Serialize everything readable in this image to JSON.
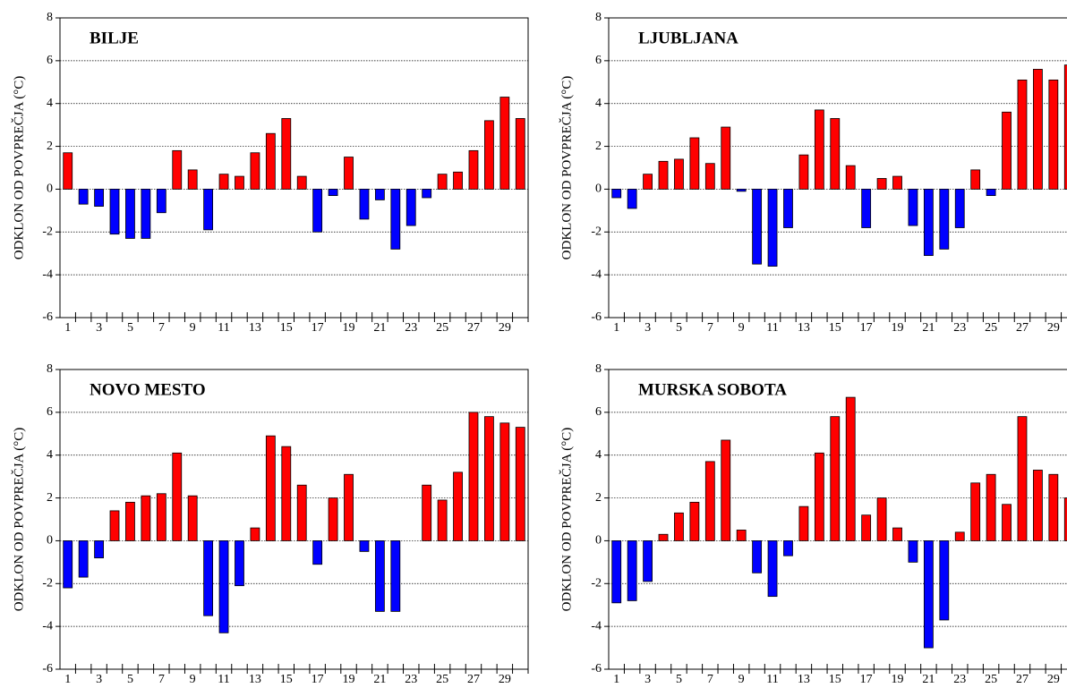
{
  "chart_data": [
    {
      "type": "bar",
      "title": "BILJE",
      "y_label": "ODKLON OD POVPREČJA (°C)",
      "categories": [
        "1",
        null,
        "3",
        null,
        "5",
        null,
        "7",
        null,
        "9",
        null,
        "11",
        null,
        "13",
        null,
        "15",
        null,
        "17",
        null,
        "19",
        null,
        "21",
        null,
        "23",
        null,
        "25",
        null,
        "27",
        null,
        "29",
        null
      ],
      "values": [
        1.7,
        -0.7,
        -0.8,
        -2.1,
        -2.3,
        -2.3,
        -1.1,
        1.8,
        0.9,
        -1.9,
        0.7,
        0.6,
        1.7,
        2.6,
        3.3,
        0.6,
        -2.0,
        -0.3,
        1.5,
        -1.4,
        -0.5,
        -2.8,
        -1.7,
        -0.4,
        0.7,
        0.8,
        1.8,
        3.2,
        4.3,
        3.3
      ],
      "color_positive": "#ff0000",
      "color_negative": "#0000ff",
      "ylim": [
        -6,
        8
      ],
      "yticks": [
        -6,
        -4,
        -2,
        0,
        2,
        4,
        6,
        8
      ],
      "grid": true
    },
    {
      "type": "bar",
      "title": "LJUBLJANA",
      "y_label": "ODKLON OD POVPREČJA (°C)",
      "categories": [
        "1",
        null,
        "3",
        null,
        "5",
        null,
        "7",
        null,
        "9",
        null,
        "11",
        null,
        "13",
        null,
        "15",
        null,
        "17",
        null,
        "19",
        null,
        "21",
        null,
        "23",
        null,
        "25",
        null,
        "27",
        null,
        "29",
        null
      ],
      "values": [
        -0.4,
        -0.9,
        0.7,
        1.3,
        1.4,
        2.4,
        1.2,
        2.9,
        -0.1,
        -3.5,
        -3.6,
        -1.8,
        1.6,
        3.7,
        3.3,
        1.1,
        -1.8,
        0.5,
        0.6,
        -1.7,
        -3.1,
        -2.8,
        -1.8,
        0.9,
        -0.3,
        3.6,
        5.1,
        5.6,
        5.1,
        5.8
      ],
      "color_positive": "#ff0000",
      "color_negative": "#0000ff",
      "ylim": [
        -6,
        8
      ],
      "yticks": [
        -6,
        -4,
        -2,
        0,
        2,
        4,
        6,
        8
      ],
      "grid": true
    },
    {
      "type": "bar",
      "title": "NOVO MESTO",
      "y_label": "ODKLON OD POVPREČJA (°C)",
      "categories": [
        "1",
        null,
        "3",
        null,
        "5",
        null,
        "7",
        null,
        "9",
        null,
        "11",
        null,
        "13",
        null,
        "15",
        null,
        "17",
        null,
        "19",
        null,
        "21",
        null,
        "23",
        null,
        "25",
        null,
        "27",
        null,
        "29",
        null
      ],
      "values": [
        -2.2,
        -1.7,
        -0.8,
        1.4,
        1.8,
        2.1,
        2.2,
        4.1,
        2.1,
        -3.5,
        -4.3,
        -2.1,
        0.6,
        4.9,
        4.4,
        2.6,
        -1.1,
        2.0,
        3.1,
        -0.5,
        -3.3,
        -3.3,
        0,
        2.6,
        1.9,
        3.2,
        6.0,
        5.8,
        5.5,
        5.3
      ],
      "color_positive": "#ff0000",
      "color_negative": "#0000ff",
      "ylim": [
        -6,
        8
      ],
      "yticks": [
        -6,
        -4,
        -2,
        0,
        2,
        4,
        6,
        8
      ],
      "grid": true
    },
    {
      "type": "bar",
      "title": "MURSKA SOBOTA",
      "y_label": "ODKLON OD POVPREČJA (°C)",
      "categories": [
        "1",
        null,
        "3",
        null,
        "5",
        null,
        "7",
        null,
        "9",
        null,
        "11",
        null,
        "13",
        null,
        "15",
        null,
        "17",
        null,
        "19",
        null,
        "21",
        null,
        "23",
        null,
        "25",
        null,
        "27",
        null,
        "29",
        null
      ],
      "values": [
        -2.9,
        -2.8,
        -1.9,
        0.3,
        1.3,
        1.8,
        3.7,
        4.7,
        0.5,
        -1.5,
        -2.6,
        -0.7,
        1.6,
        4.1,
        5.8,
        6.7,
        1.2,
        2.0,
        0.6,
        -1.0,
        -5.0,
        -3.7,
        0.4,
        2.7,
        3.1,
        1.7,
        5.8,
        3.3,
        3.1,
        2.0
      ],
      "color_positive": "#ff0000",
      "color_negative": "#0000ff",
      "ylim": [
        -6,
        8
      ],
      "yticks": [
        -6,
        -4,
        -2,
        0,
        2,
        4,
        6,
        8
      ],
      "grid": true
    }
  ]
}
